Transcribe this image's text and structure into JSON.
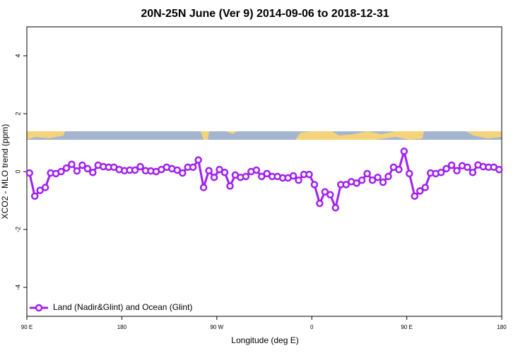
{
  "chart_data": {
    "type": "line",
    "title": "20N-25N June (Ver 9)   2014-09-06 to 2018-12-31",
    "x_label": "Longitude (deg E)",
    "y_label": "XCO2 - MLO trend (ppm)",
    "x": [
      92.5,
      97.5,
      102.5,
      107.5,
      112.5,
      117.5,
      122.5,
      127.5,
      132.5,
      137.5,
      142.5,
      147.5,
      152.5,
      157.5,
      162.5,
      167.5,
      172.5,
      177.5,
      182.5,
      187.5,
      192.5,
      197.5,
      202.5,
      207.5,
      212.5,
      217.5,
      222.5,
      227.5,
      232.5,
      237.5,
      242.5,
      247.5,
      252.5,
      257.5,
      262.5,
      267.5,
      272.5,
      277.5,
      282.5,
      287.5,
      292.5,
      297.5,
      302.5,
      307.5,
      312.5,
      317.5,
      322.5,
      327.5,
      332.5,
      337.5,
      342.5,
      347.5,
      352.5,
      357.5,
      362.5,
      367.5,
      372.5,
      377.5,
      382.5,
      387.5,
      392.5,
      397.5,
      402.5,
      407.5,
      412.5,
      417.5,
      422.5,
      427.5,
      432.5,
      437.5,
      442.5,
      447.5,
      452.5,
      457.5,
      462.5,
      467.5,
      472.5,
      477.5,
      482.5,
      487.5,
      492.5,
      497.5,
      502.5,
      507.5,
      512.5,
      517.5,
      522.5,
      527.5,
      532.5,
      537.5
    ],
    "series": [
      {
        "name": "Land (Nadir&Glint) and Ocean (Glint)",
        "color": "#a020f0",
        "values": [
          -0.05,
          -0.85,
          -0.65,
          -0.55,
          -0.05,
          -0.07,
          0,
          0.12,
          0.25,
          0.02,
          0.22,
          0.1,
          -0.03,
          0.22,
          0.17,
          0.15,
          0.15,
          0.07,
          0.03,
          0.05,
          0.05,
          0.17,
          0.03,
          0.02,
          0,
          0.07,
          0.15,
          0.1,
          0.05,
          -0.05,
          0.15,
          0.15,
          0.4,
          -0.55,
          0.03,
          -0.2,
          0.07,
          -0.03,
          -0.5,
          -0.12,
          -0.2,
          -0.17,
          0,
          0.05,
          -0.17,
          -0.07,
          -0.17,
          -0.17,
          -0.22,
          -0.22,
          -0.15,
          -0.3,
          -0.1,
          -0.1,
          -0.45,
          -1.1,
          -0.7,
          -0.8,
          -1.25,
          -0.45,
          -0.45,
          -0.35,
          -0.4,
          -0.3,
          -0.07,
          -0.3,
          -0.2,
          -0.37,
          -0.17,
          0.15,
          0.07,
          0.7,
          -0.07,
          -0.85,
          -0.67,
          -0.55,
          -0.05,
          -0.07,
          -0.03,
          0.1,
          0.22,
          0.03,
          0.2,
          0.15,
          -0.03,
          0.23,
          0.17,
          0.15,
          0.15,
          0.07
        ]
      }
    ],
    "xlim": [
      90,
      540
    ],
    "xticks": [
      {
        "value": 90,
        "label": "90 E"
      },
      180,
      {
        "value": 270,
        "label": "90 W"
      },
      {
        "value": 360,
        "label": "0"
      },
      {
        "value": 450,
        "label": "90 E"
      },
      {
        "value": 540,
        "label": "180"
      }
    ],
    "ylim": [
      -5,
      5
    ],
    "yticks": [
      -4,
      -2,
      0,
      2,
      4
    ],
    "legend": "bottom-left"
  }
}
